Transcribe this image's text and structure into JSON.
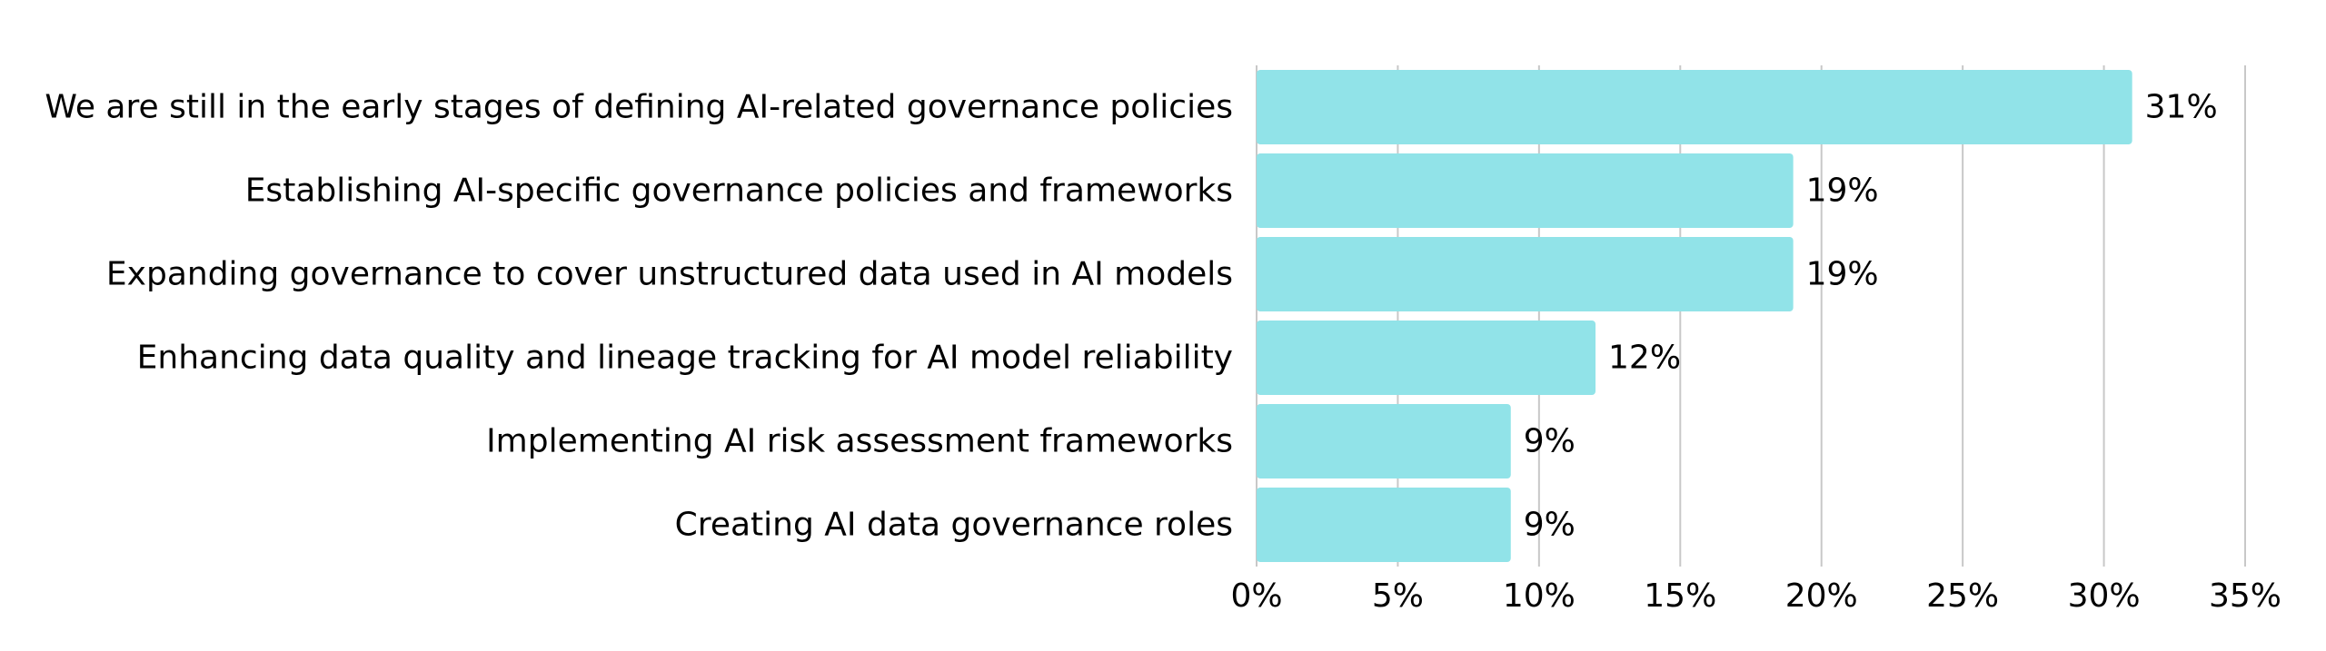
{
  "chart_data": {
    "type": "bar",
    "orientation": "horizontal",
    "categories": [
      "We are still in the early stages of defining AI-related governance policies",
      "Establishing AI-specific governance policies and frameworks",
      "Expanding governance to cover unstructured data used in AI models",
      "Enhancing data quality and lineage tracking for AI model reliability",
      "Implementing AI risk assessment frameworks",
      "Creating AI data governance roles"
    ],
    "values": [
      31,
      19,
      19,
      12,
      9,
      9
    ],
    "value_labels": [
      "31%",
      "19%",
      "19%",
      "12%",
      "9%",
      "9%"
    ],
    "xlim": [
      0,
      35
    ],
    "xticks": [
      0,
      5,
      10,
      15,
      20,
      25,
      30,
      35
    ],
    "xtick_labels": [
      "0%",
      "5%",
      "10%",
      "15%",
      "20%",
      "25%",
      "30%",
      "35%"
    ],
    "grid": "vertical",
    "bar_color": "#91e3e8",
    "grid_color": "#c8c8c8",
    "title": "",
    "xlabel": "",
    "ylabel": ""
  }
}
